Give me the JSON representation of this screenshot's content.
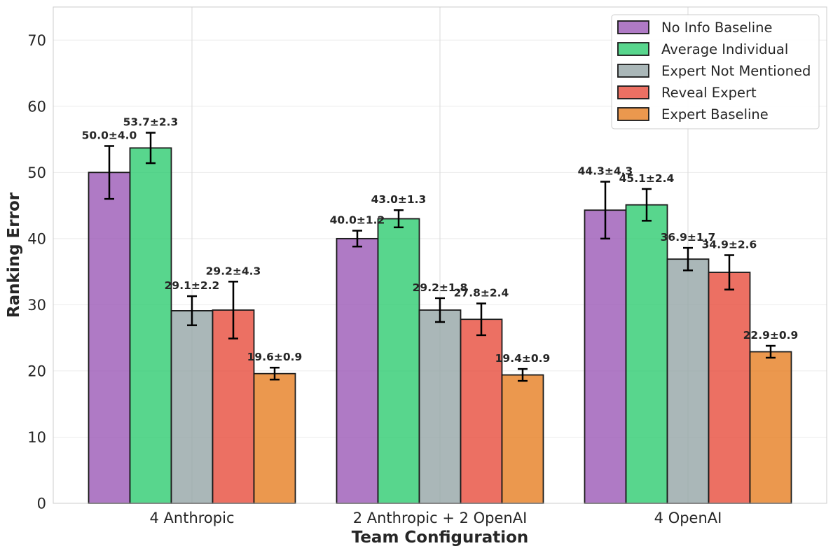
{
  "chart_data": {
    "type": "bar",
    "title": "",
    "xlabel": "Team Configuration",
    "ylabel": "Ranking Error",
    "ylim": [
      0,
      75
    ],
    "yticks": [
      0,
      10,
      20,
      30,
      40,
      50,
      60,
      70
    ],
    "grid": true,
    "legend_position": "top-right",
    "categories": [
      "4 Anthropic",
      "2 Anthropic + 2 OpenAI",
      "4 OpenAI"
    ],
    "series": [
      {
        "name": "No Info Baseline",
        "color": "#9b59b6",
        "values": [
          50.0,
          40.0,
          44.3
        ],
        "errors": [
          4.0,
          1.2,
          4.3
        ],
        "labels": [
          "50.0±4.0",
          "40.0±1.2",
          "44.3±4.3"
        ]
      },
      {
        "name": "Average Individual",
        "color": "#2ecc71",
        "values": [
          53.7,
          43.0,
          45.1
        ],
        "errors": [
          2.3,
          1.3,
          2.4
        ],
        "labels": [
          "53.7±2.3",
          "43.0±1.3",
          "45.1±2.4"
        ]
      },
      {
        "name": "Expert Not Mentioned",
        "color": "#95a5a6",
        "values": [
          29.1,
          29.2,
          36.9
        ],
        "errors": [
          2.2,
          1.8,
          1.7
        ],
        "labels": [
          "29.1±2.2",
          "29.2±1.8",
          "36.9±1.7"
        ]
      },
      {
        "name": "Reveal Expert",
        "color": "#e74c3c",
        "values": [
          29.2,
          27.8,
          34.9
        ],
        "errors": [
          4.3,
          2.4,
          2.6
        ],
        "labels": [
          "29.2±4.3",
          "27.8±2.4",
          "34.9±2.6"
        ]
      },
      {
        "name": "Expert Baseline",
        "color": "#e67e22",
        "values": [
          19.6,
          19.4,
          22.9
        ],
        "errors": [
          0.9,
          0.9,
          0.9
        ],
        "labels": [
          "19.6±0.9",
          "19.4±0.9",
          "22.9±0.9"
        ]
      }
    ]
  }
}
